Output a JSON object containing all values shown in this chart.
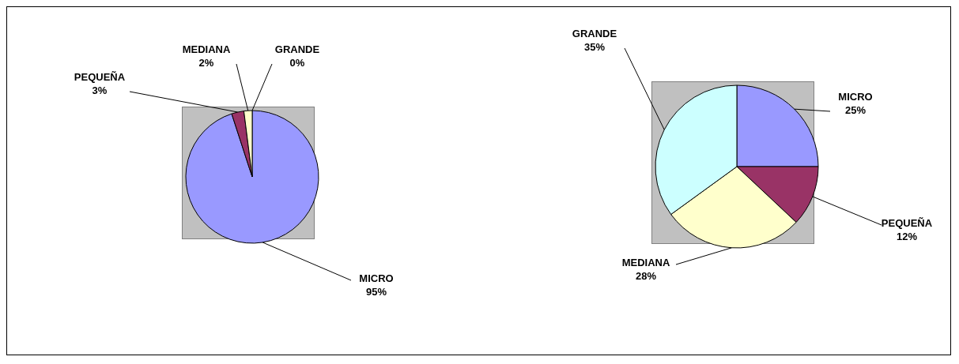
{
  "chart_data": [
    {
      "type": "pie",
      "categories": [
        "MICRO",
        "PEQUEÑA",
        "MEDIANA",
        "GRANDE"
      ],
      "values": [
        95,
        3,
        2,
        0
      ],
      "value_labels": [
        "95%",
        "3%",
        "2%",
        "0%"
      ],
      "colors": [
        "#9999ff",
        "#993366",
        "#ffffcc",
        "#ccffff"
      ]
    },
    {
      "type": "pie",
      "categories": [
        "MICRO",
        "PEQUEÑA",
        "MEDIANA",
        "GRANDE"
      ],
      "values": [
        25,
        12,
        28,
        35
      ],
      "value_labels": [
        "25%",
        "12%",
        "28%",
        "35%"
      ],
      "colors": [
        "#9999ff",
        "#993366",
        "#ffffcc",
        "#ccffff"
      ]
    }
  ]
}
